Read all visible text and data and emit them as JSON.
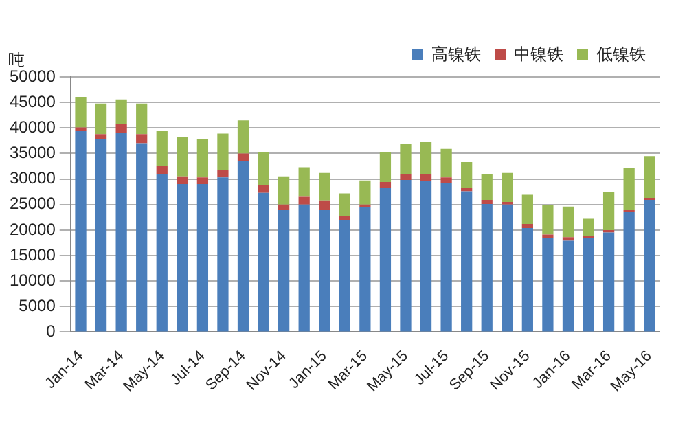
{
  "chart_data": {
    "type": "bar",
    "stacked": true,
    "ylabel": "吨",
    "categories": [
      "Jan-14",
      null,
      "Mar-14",
      null,
      "May-14",
      null,
      "Jul-14",
      null,
      "Sep-14",
      null,
      "Nov-14",
      null,
      "Jan-15",
      null,
      "Mar-15",
      null,
      "May-15",
      null,
      "Jul-15",
      null,
      "Sep-15",
      null,
      "Nov-15",
      null,
      "Jan-16",
      null,
      "Mar-16",
      null,
      "May-16"
    ],
    "series": [
      {
        "name": "高镍铁",
        "color": "#4a7ebb",
        "values": [
          39500,
          37800,
          39000,
          37000,
          31000,
          29000,
          29000,
          30300,
          33500,
          27300,
          24000,
          25000,
          24000,
          22000,
          24500,
          28200,
          29800,
          29600,
          29200,
          27600,
          25100,
          25000,
          20400,
          18400,
          17900,
          18400,
          19500,
          23600,
          25900
        ]
      },
      {
        "name": "中镍铁",
        "color": "#be4b48",
        "values": [
          600,
          1000,
          1800,
          1800,
          1500,
          1500,
          1300,
          1500,
          1500,
          1500,
          1000,
          1500,
          1800,
          700,
          500,
          1200,
          1200,
          1300,
          1100,
          700,
          800,
          500,
          800,
          700,
          700,
          400,
          500,
          400,
          400
        ]
      },
      {
        "name": "低镍铁",
        "color": "#98b954",
        "values": [
          6000,
          6000,
          4800,
          6000,
          7000,
          7800,
          7500,
          7100,
          6500,
          6500,
          5500,
          5800,
          5400,
          4500,
          4700,
          5900,
          5900,
          6300,
          5600,
          5000,
          5100,
          5700,
          5700,
          5800,
          6000,
          3400,
          7500,
          8200,
          8200
        ]
      }
    ],
    "ylim": [
      0,
      50000
    ],
    "yticks": [
      0,
      5000,
      10000,
      15000,
      20000,
      25000,
      30000,
      35000,
      40000,
      45000,
      50000
    ],
    "grid": "y",
    "legend": "top right"
  }
}
